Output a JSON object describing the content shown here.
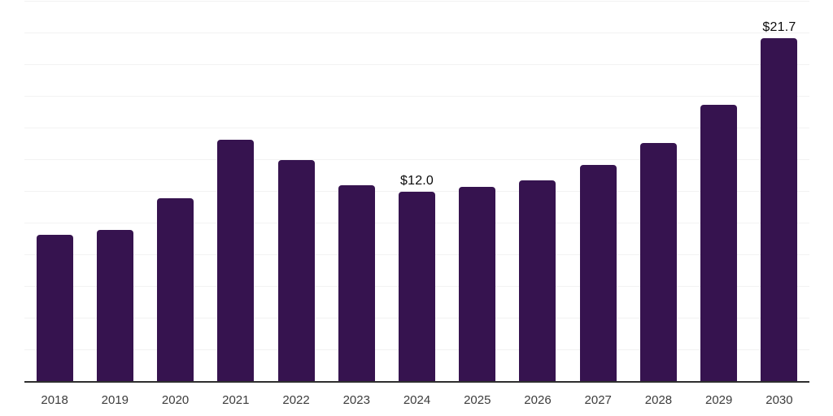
{
  "chart_data": {
    "type": "bar",
    "title": "",
    "xlabel": "",
    "ylabel": "",
    "categories": [
      "2018",
      "2019",
      "2020",
      "2021",
      "2022",
      "2023",
      "2024",
      "2025",
      "2026",
      "2027",
      "2028",
      "2029",
      "2030"
    ],
    "values": [
      9.3,
      9.6,
      11.6,
      15.3,
      14.0,
      12.4,
      12.0,
      12.3,
      12.7,
      13.7,
      15.1,
      17.5,
      21.7
    ],
    "data_labels": [
      "",
      "",
      "",
      "",
      "",
      "",
      "$12.0",
      "",
      "",
      "",
      "",
      "",
      "$21.7"
    ],
    "value_prefix": "$",
    "ylim": [
      0,
      24
    ],
    "gridline_step": 2,
    "grid": "horizontal",
    "legend": "none",
    "colors": {
      "bar": "#36134F",
      "gridline": "#F2F2F2",
      "axis": "#2E2E2E",
      "tick_label": "#3C3C3C",
      "data_label": "#0B0B0B",
      "background": "#FFFFFF"
    }
  }
}
